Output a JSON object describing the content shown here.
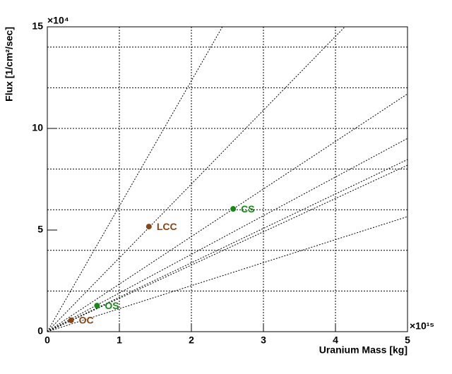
{
  "chart_data": {
    "type": "scatter",
    "x_label": "Uranium Mass [kg]",
    "y_label": "Flux [1/cm²/sec]",
    "x_multiplier": "×10¹⁵",
    "y_multiplier": "×10⁴",
    "xlim": [
      0,
      5
    ],
    "ylim": [
      0,
      15
    ],
    "xticks": [
      0,
      1,
      2,
      3,
      4,
      5
    ],
    "yticks": [
      0,
      5,
      10,
      15
    ],
    "xgrid": [
      1,
      2,
      3,
      4
    ],
    "ygrid": [
      2,
      4,
      6,
      8,
      10,
      12,
      14
    ],
    "lines": [
      {
        "x": [
          0,
          2.43
        ],
        "y": [
          0,
          15
        ]
      },
      {
        "x": [
          0,
          4.13
        ],
        "y": [
          0,
          15
        ]
      },
      {
        "x": [
          0,
          5
        ],
        "y": [
          0,
          11.7
        ]
      },
      {
        "x": [
          0,
          5
        ],
        "y": [
          0,
          9.51
        ]
      },
      {
        "x": [
          0,
          5
        ],
        "y": [
          0,
          8.47
        ]
      },
      {
        "x": [
          0,
          5
        ],
        "y": [
          0,
          8.19
        ]
      },
      {
        "x": [
          0,
          5
        ],
        "y": [
          0,
          5.66
        ]
      }
    ],
    "points": [
      {
        "label": "OC",
        "x": 0.33,
        "y": 0.56,
        "color": "#8b4513"
      },
      {
        "label": "OS",
        "x": 0.69,
        "y": 1.28,
        "color": "#138a13"
      },
      {
        "label": "LCC",
        "x": 1.41,
        "y": 5.17,
        "color": "#8b4513"
      },
      {
        "label": "CS",
        "x": 2.58,
        "y": 6.04,
        "color": "#138a13"
      }
    ]
  }
}
